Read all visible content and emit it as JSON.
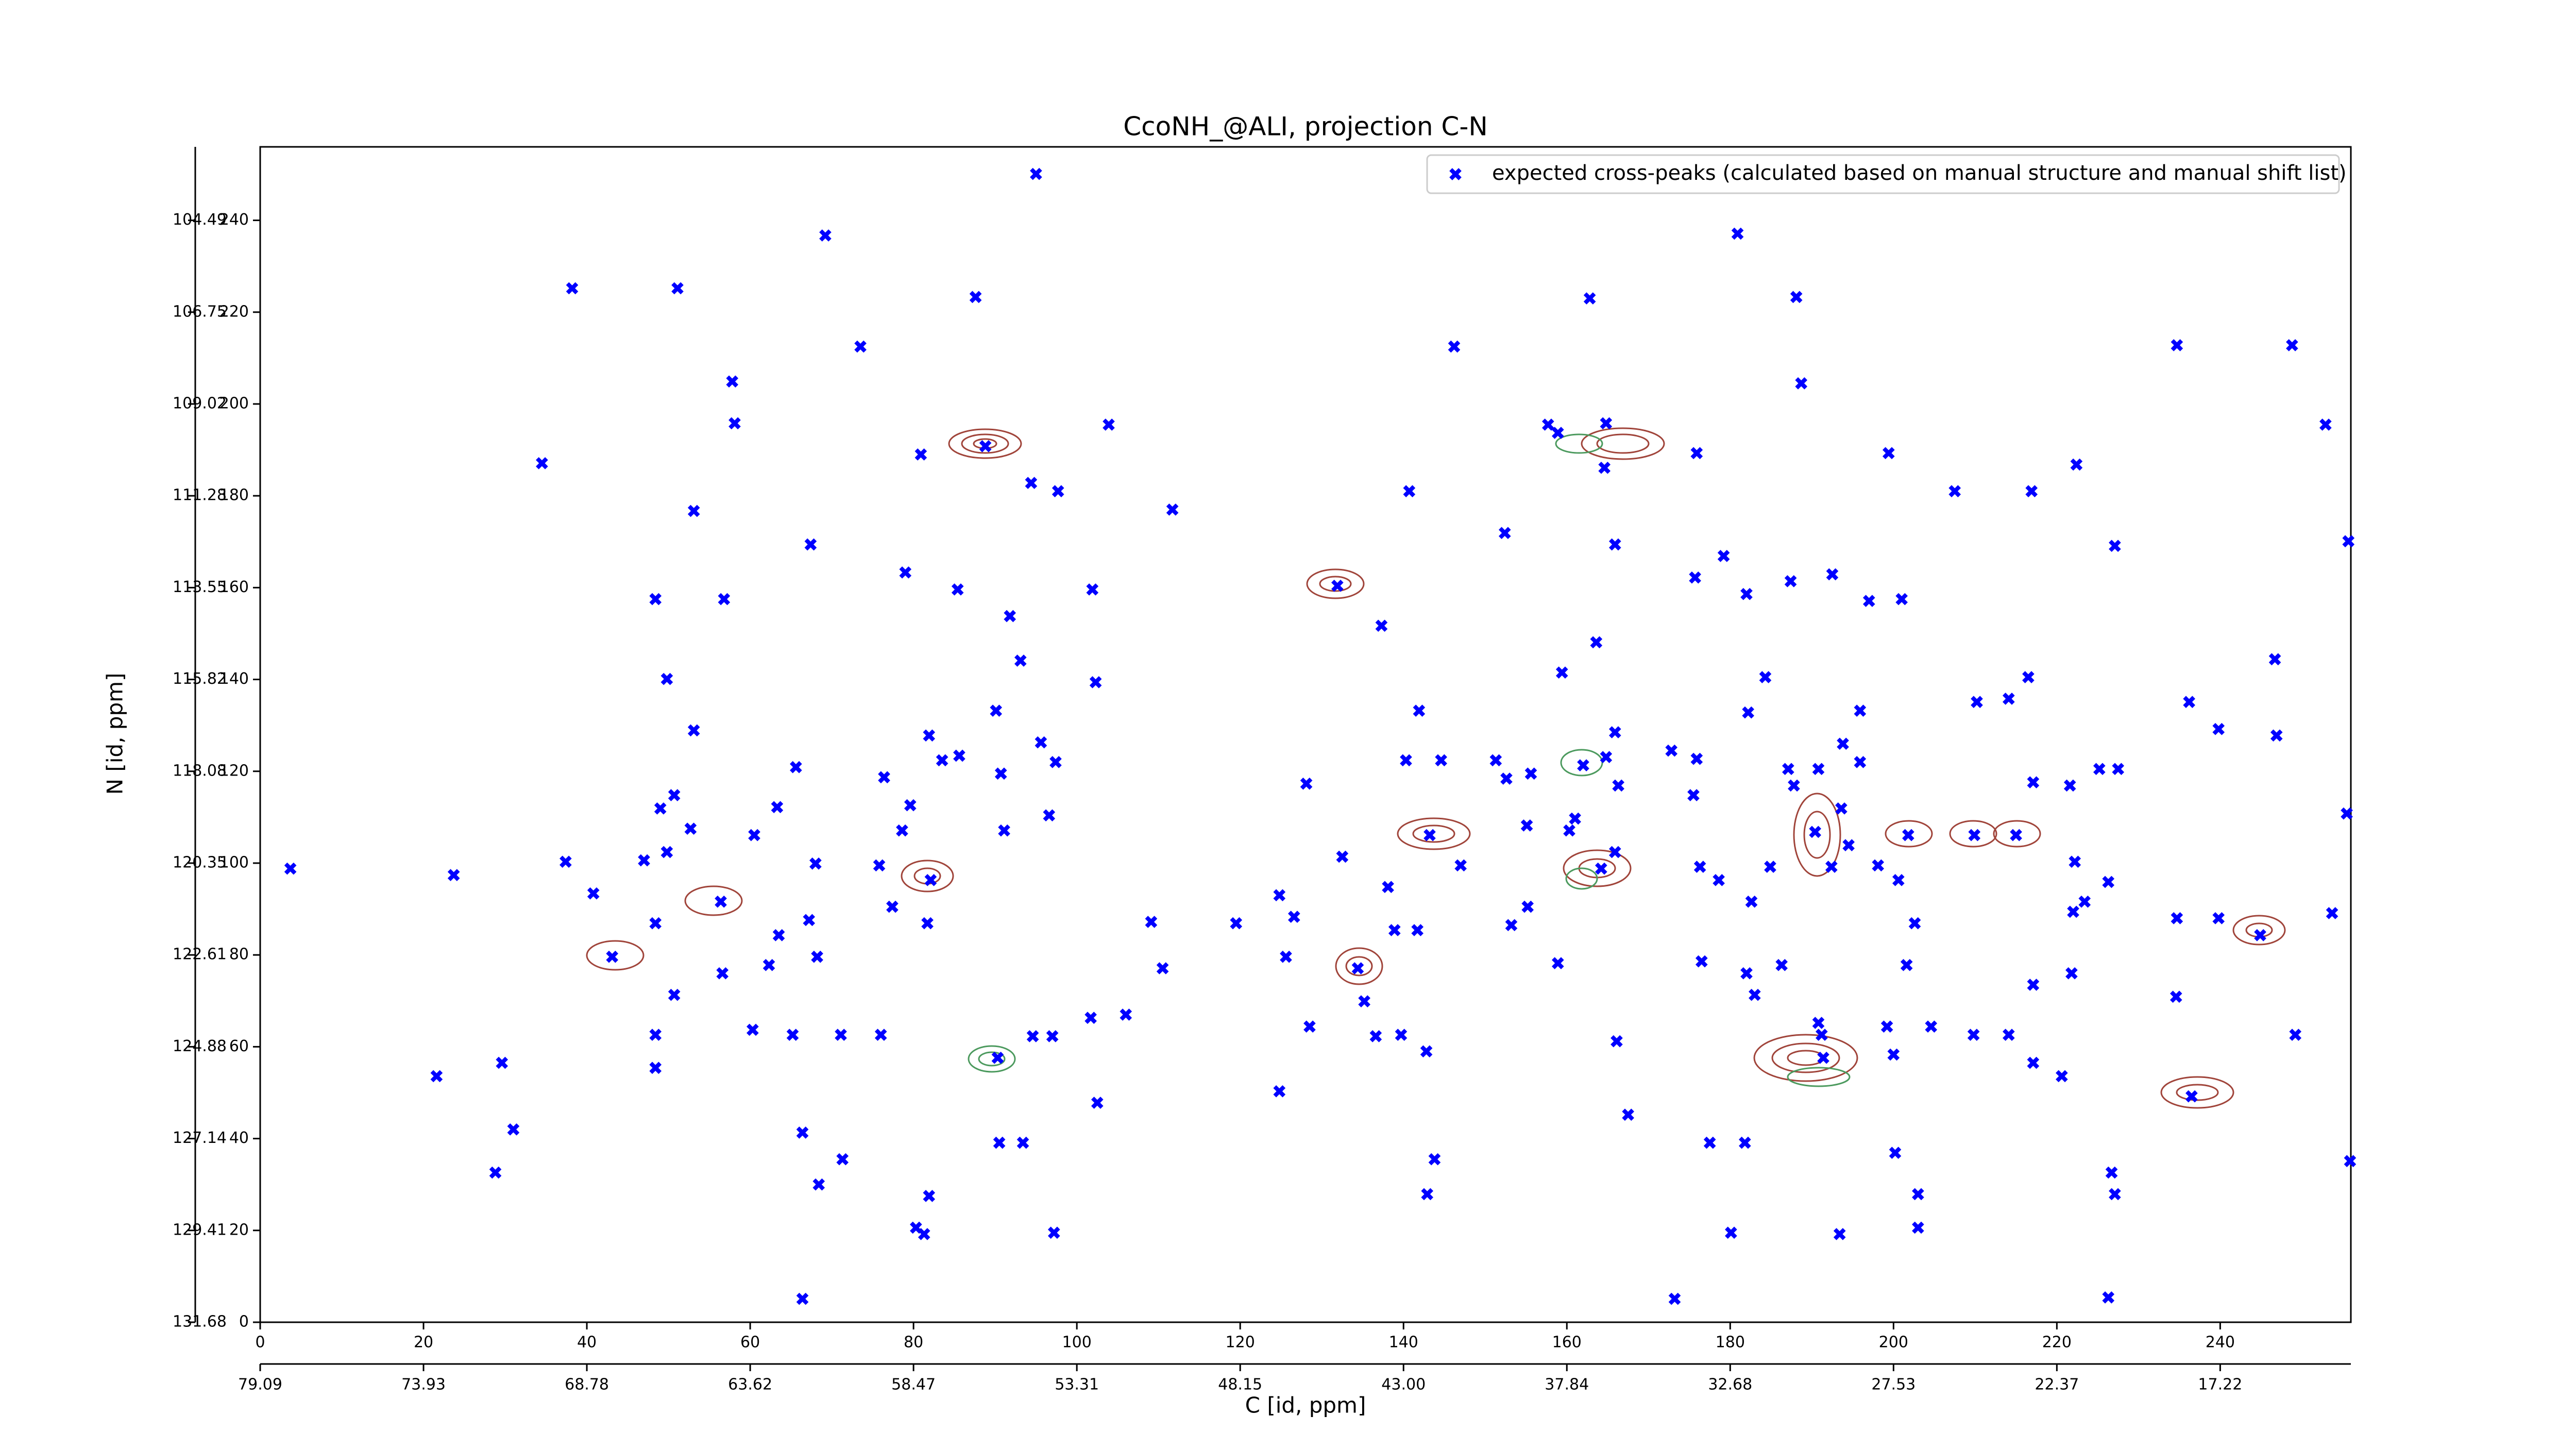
{
  "chart_data": {
    "type": "scatter",
    "title": "CcoNH_@ALI, projection C-N",
    "xlabel": "C [id, ppm]",
    "ylabel": "N [id, ppm]",
    "xlim": [
      0,
      256
    ],
    "ylim": [
      0,
      256
    ],
    "xticks": [
      0,
      20,
      40,
      60,
      80,
      100,
      120,
      140,
      160,
      180,
      200,
      220,
      240
    ],
    "yticks": [
      0,
      20,
      40,
      60,
      80,
      100,
      120,
      140,
      160,
      180,
      200,
      220,
      240
    ],
    "secondary_xticks": [
      {
        "value": 0,
        "label": "79.09"
      },
      {
        "value": 20,
        "label": "73.93"
      },
      {
        "value": 40,
        "label": "68.78"
      },
      {
        "value": 60,
        "label": "63.62"
      },
      {
        "value": 80,
        "label": "58.47"
      },
      {
        "value": 100,
        "label": "53.31"
      },
      {
        "value": 120,
        "label": "48.15"
      },
      {
        "value": 140,
        "label": "43.00"
      },
      {
        "value": 160,
        "label": "37.84"
      },
      {
        "value": 180,
        "label": "32.68"
      },
      {
        "value": 200,
        "label": "27.53"
      },
      {
        "value": 220,
        "label": "22.37"
      },
      {
        "value": 240,
        "label": "17.22"
      }
    ],
    "secondary_yticks": [
      {
        "value": 0,
        "label": "131.68"
      },
      {
        "value": 20,
        "label": "129.41"
      },
      {
        "value": 40,
        "label": "127.14"
      },
      {
        "value": 60,
        "label": "124.88"
      },
      {
        "value": 80,
        "label": "122.61"
      },
      {
        "value": 100,
        "label": "120.35"
      },
      {
        "value": 120,
        "label": "118.08"
      },
      {
        "value": 140,
        "label": "115.82"
      },
      {
        "value": 160,
        "label": "113.55"
      },
      {
        "value": 180,
        "label": "111.28"
      },
      {
        "value": 200,
        "label": "109.02"
      },
      {
        "value": 220,
        "label": "106.75"
      },
      {
        "value": 240,
        "label": "104.49"
      }
    ],
    "legend": "upper right",
    "x": [
      95.0,
      38.2,
      51.1,
      87.6,
      69.2,
      73.5,
      57.8,
      58.1,
      34.5,
      53.1,
      80.9,
      88.8,
      103.9,
      97.7,
      111.7,
      94.4,
      67.4,
      79.0,
      85.4,
      48.4,
      56.8,
      91.8,
      101.9,
      131.9,
      137.3,
      140.7,
      152.4,
      146.2,
      162.8,
      164.8,
      157.7,
      164.6,
      175.9,
      165.9,
      175.7,
      179.2,
      182.0,
      187.4,
      192.5,
      197.0,
      201.0,
      199.4,
      207.5,
      216.9,
      222.4,
      227.1,
      234.7,
      248.8,
      252.9,
      255.7,
      188.7,
      188.1,
      180.9,
      93.1,
      102.3,
      49.8,
      53.1,
      65.6,
      76.4,
      81.9,
      83.5,
      85.6,
      90.1,
      95.6,
      97.4,
      90.7,
      91.1,
      96.6,
      79.6,
      78.6,
      75.8,
      82.1,
      81.7,
      77.4,
      68.0,
      63.3,
      60.5,
      52.7,
      49.8,
      47.0,
      49.0,
      50.7,
      56.4,
      48.4,
      37.4,
      40.8,
      23.7,
      3.7,
      63.5,
      62.3,
      67.2,
      68.2,
      60.3,
      65.2,
      71.1,
      76.0,
      43.1,
      50.7,
      56.6,
      48.4,
      48.4,
      29.6,
      21.6,
      31.0,
      28.8,
      66.4,
      71.3,
      68.4,
      81.9,
      80.3,
      81.3,
      66.4,
      90.5,
      93.4,
      97.2,
      102.5,
      90.3,
      94.6,
      97.0,
      101.7,
      106.0,
      110.5,
      109.1,
      119.5,
      124.8,
      126.6,
      125.6,
      128.1,
      132.5,
      138.1,
      143.2,
      147.0,
      141.9,
      140.3,
      144.6,
      151.3,
      152.6,
      155.1,
      155.6,
      159.4,
      163.6,
      165.9,
      164.8,
      162.0,
      166.3,
      161.0,
      160.3,
      164.2,
      165.9,
      172.8,
      175.9,
      175.5,
      176.3,
      178.6,
      182.6,
      184.9,
      182.2,
      184.3,
      187.1,
      187.8,
      190.8,
      190.4,
      192.4,
      194.5,
      193.6,
      195.9,
      193.8,
      195.9,
      198.1,
      201.8,
      200.6,
      202.6,
      201.6,
      209.9,
      215.0,
      217.1,
      221.6,
      225.2,
      227.5,
      222.2,
      223.4,
      222.0,
      226.3,
      234.7,
      239.8,
      244.9,
      253.7,
      255.5,
      246.7,
      246.9,
      239.8,
      236.2,
      216.5,
      214.1,
      210.2,
      221.8,
      217.1,
      217.1,
      214.1,
      209.8,
      204.6,
      220.6,
      234.6,
      236.5,
      249.2,
      255.9,
      226.7,
      227.1,
      226.3,
      203.0,
      203.0,
      200.2,
      193.4,
      190.8,
      191.2,
      191.4,
      200.0,
      199.2,
      186.3,
      182.0,
      183.0,
      176.5,
      177.5,
      181.8,
      180.1,
      173.2,
      167.5,
      166.1,
      158.9,
      155.2,
      153.2,
      143.8,
      142.9,
      139.7,
      136.6,
      135.2,
      134.4,
      138.9,
      141.7,
      128.5,
      124.8,
      158.9,
      142.8
    ],
    "series": [
      {
        "name": "expected cross-peaks (calculated based on manual structure and manual shift list)",
        "color": "#0000ff",
        "values": [
          250.1,
          225.2,
          225.2,
          223.3,
          236.7,
          212.5,
          204.9,
          195.8,
          187.1,
          176.7,
          189.0,
          190.8,
          195.5,
          181.0,
          177.0,
          182.8,
          169.4,
          163.3,
          159.6,
          157.5,
          157.5,
          153.8,
          159.6,
          160.4,
          151.7,
          181.0,
          171.9,
          212.5,
          223.0,
          195.8,
          195.5,
          186.1,
          189.3,
          169.4,
          162.2,
          166.9,
          158.6,
          161.4,
          162.9,
          157.1,
          157.5,
          189.3,
          181.0,
          181.0,
          186.8,
          169.1,
          212.8,
          212.8,
          195.5,
          170.1,
          204.5,
          223.3,
          237.1,
          144.1,
          139.4,
          140.1,
          128.9,
          120.9,
          118.7,
          127.8,
          122.4,
          123.4,
          133.2,
          126.3,
          122.0,
          119.5,
          107.1,
          110.4,
          112.6,
          107.1,
          99.5,
          96.3,
          86.9,
          90.5,
          99.9,
          112.2,
          106.1,
          107.5,
          102.4,
          100.6,
          111.9,
          114.8,
          91.6,
          86.9,
          100.3,
          93.4,
          97.4,
          98.8,
          84.3,
          77.8,
          87.6,
          79.6,
          63.7,
          62.6,
          62.6,
          62.6,
          79.6,
          71.3,
          76.0,
          62.6,
          55.4,
          56.5,
          53.6,
          42.0,
          32.6,
          41.3,
          35.5,
          30.0,
          27.5,
          20.6,
          19.2,
          5.1,
          39.1,
          39.1,
          19.5,
          47.8,
          57.6,
          62.3,
          62.3,
          66.3,
          67.0,
          77.1,
          87.2,
          86.9,
          93.0,
          88.3,
          79.6,
          117.3,
          101.4,
          94.8,
          106.1,
          99.5,
          133.2,
          122.4,
          122.4,
          122.4,
          118.4,
          108.2,
          119.5,
          141.5,
          148.1,
          128.5,
          123.1,
          121.3,
          116.9,
          109.7,
          107.1,
          98.8,
          102.4,
          124.5,
          122.7,
          114.8,
          99.2,
          96.3,
          91.6,
          99.2,
          132.8,
          140.5,
          120.5,
          116.9,
          120.5,
          106.8,
          99.2,
          103.9,
          111.9,
          122.0,
          126.0,
          133.2,
          99.5,
          106.1,
          96.3,
          86.9,
          77.8,
          106.1,
          106.1,
          117.6,
          116.9,
          120.5,
          120.5,
          100.3,
          91.6,
          89.4,
          95.9,
          88.0,
          88.0,
          84.3,
          89.1,
          110.8,
          144.4,
          127.8,
          129.2,
          135.1,
          140.5,
          135.8,
          135.1,
          76.0,
          73.5,
          56.5,
          62.6,
          62.6,
          64.4,
          53.6,
          70.9,
          49.2,
          62.6,
          35.1,
          32.6,
          27.9,
          5.4,
          27.9,
          20.6,
          36.9,
          19.2,
          65.2,
          62.6,
          57.6,
          58.3,
          64.4,
          77.8,
          76.0,
          71.3,
          78.6,
          39.1,
          39.1,
          19.5,
          5.1,
          45.2,
          61.2,
          78.2,
          90.5,
          86.5,
          35.5,
          27.9,
          62.6,
          62.3,
          69.9,
          77.1,
          85.4,
          85.4,
          64.4,
          50.3,
          193.7,
          59.0
        ]
      }
    ]
  }
}
